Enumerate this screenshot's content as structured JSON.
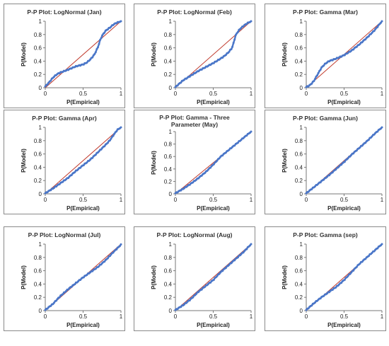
{
  "colors": {
    "empirical_points": "#4a76c8",
    "reference_line": "#c0392b",
    "axis": "#777777",
    "border": "#8a8a8a"
  },
  "chart_data": [
    {
      "type": "line",
      "title": "P-P Plot: LogNormal (Jan)",
      "xlabel": "P(Empirical)",
      "ylabel": "P(Model)",
      "xlim": [
        0,
        1
      ],
      "ylim": [
        0,
        1
      ],
      "x_ticks": [
        "0",
        "0.5",
        "1"
      ],
      "y_ticks": [
        "0",
        "0.2",
        "0.4",
        "0.6",
        "0.8",
        "1"
      ],
      "grid": false,
      "legend": "none",
      "series": [
        {
          "x": [
            0,
            1
          ],
          "y": [
            0,
            1
          ]
        },
        {
          "x": [
            0,
            0.05,
            0.1,
            0.15,
            0.2,
            0.3,
            0.4,
            0.5,
            0.55,
            0.6,
            0.65,
            0.7,
            0.72,
            0.75,
            0.8,
            0.85,
            0.9,
            0.95,
            1.0
          ],
          "y": [
            0.02,
            0.08,
            0.15,
            0.2,
            0.23,
            0.27,
            0.32,
            0.35,
            0.38,
            0.43,
            0.5,
            0.62,
            0.7,
            0.78,
            0.86,
            0.9,
            0.95,
            0.98,
            1.0
          ]
        }
      ]
    },
    {
      "type": "line",
      "title": "P-P Plot: LogNormal (Feb)",
      "xlabel": "P(Empirical)",
      "ylabel": "P(Model)",
      "xlim": [
        0,
        1
      ],
      "ylim": [
        0,
        1
      ],
      "x_ticks": [
        "0",
        "0.5",
        "1"
      ],
      "y_ticks": [
        "0",
        "0.2",
        "0.4",
        "0.6",
        "0.8",
        "1"
      ],
      "grid": false,
      "legend": "none",
      "series": [
        {
          "x": [
            0,
            1
          ],
          "y": [
            0,
            1
          ]
        },
        {
          "x": [
            0,
            0.05,
            0.1,
            0.2,
            0.3,
            0.4,
            0.5,
            0.6,
            0.65,
            0.7,
            0.75,
            0.8,
            0.85,
            0.9,
            0.95,
            1.0
          ],
          "y": [
            0.01,
            0.06,
            0.11,
            0.18,
            0.25,
            0.31,
            0.37,
            0.44,
            0.48,
            0.53,
            0.6,
            0.8,
            0.88,
            0.93,
            0.97,
            1.0
          ]
        }
      ]
    },
    {
      "type": "line",
      "title": "P-P Plot: Gamma (Mar)",
      "xlabel": "P(Empirical)",
      "ylabel": "P(Model)",
      "xlim": [
        0,
        1
      ],
      "ylim": [
        0,
        1
      ],
      "x_ticks": [
        "0",
        "0.5",
        "1"
      ],
      "y_ticks": [
        "0",
        "0.2",
        "0.4",
        "0.6",
        "0.8",
        "1"
      ],
      "grid": false,
      "legend": "none",
      "series": [
        {
          "x": [
            0,
            1
          ],
          "y": [
            0,
            1
          ]
        },
        {
          "x": [
            0,
            0.05,
            0.1,
            0.15,
            0.2,
            0.25,
            0.3,
            0.35,
            0.4,
            0.5,
            0.6,
            0.7,
            0.8,
            0.9,
            0.95,
            1.0
          ],
          "y": [
            0.01,
            0.04,
            0.1,
            0.2,
            0.3,
            0.36,
            0.4,
            0.42,
            0.44,
            0.49,
            0.56,
            0.65,
            0.75,
            0.86,
            0.93,
            1.0
          ]
        }
      ]
    },
    {
      "type": "line",
      "title": "P-P Plot: Gamma (Apr)",
      "xlabel": "P(Empirical)",
      "ylabel": "P(Model)",
      "xlim": [
        0,
        1
      ],
      "ylim": [
        0,
        1
      ],
      "x_ticks": [
        "0",
        "0.5",
        "1"
      ],
      "y_ticks": [
        "0",
        "0.2",
        "0.4",
        "0.6",
        "0.8",
        "1"
      ],
      "grid": false,
      "legend": "none",
      "series": [
        {
          "x": [
            0,
            1
          ],
          "y": [
            0,
            1
          ]
        },
        {
          "x": [
            0,
            0.1,
            0.2,
            0.3,
            0.4,
            0.5,
            0.6,
            0.7,
            0.8,
            0.85,
            0.9,
            0.95,
            1.0
          ],
          "y": [
            0.01,
            0.08,
            0.16,
            0.24,
            0.34,
            0.43,
            0.52,
            0.63,
            0.74,
            0.8,
            0.88,
            0.96,
            1.0
          ]
        }
      ]
    },
    {
      "type": "line",
      "title": "P-P Plot: Gamma - Three Parameter (May)",
      "xlabel": "P(Empirical)",
      "ylabel": "P(Model)",
      "xlim": [
        0,
        1
      ],
      "ylim": [
        0,
        1
      ],
      "x_ticks": [
        "0",
        "0.5",
        "1"
      ],
      "y_ticks": [
        "0",
        "0.2",
        "0.4",
        "0.6",
        "0.8",
        "1"
      ],
      "grid": false,
      "legend": "none",
      "series": [
        {
          "x": [
            0,
            1
          ],
          "y": [
            0,
            1
          ]
        },
        {
          "x": [
            0,
            0.1,
            0.2,
            0.3,
            0.4,
            0.5,
            0.6,
            0.7,
            0.8,
            0.9,
            1.0
          ],
          "y": [
            0.01,
            0.08,
            0.16,
            0.25,
            0.35,
            0.47,
            0.6,
            0.7,
            0.8,
            0.9,
            1.0
          ]
        }
      ]
    },
    {
      "type": "line",
      "title": "P-P Plot: Gamma (Jun)",
      "xlabel": "P(Empirical)",
      "ylabel": "P(Model)",
      "xlim": [
        0,
        1
      ],
      "ylim": [
        0,
        1
      ],
      "x_ticks": [
        "0",
        "0.5",
        "1"
      ],
      "y_ticks": [
        "0",
        "0.2",
        "0.4",
        "0.6",
        "0.8",
        "1"
      ],
      "grid": false,
      "legend": "none",
      "series": [
        {
          "x": [
            0,
            1
          ],
          "y": [
            0,
            1
          ]
        },
        {
          "x": [
            0,
            0.1,
            0.2,
            0.3,
            0.4,
            0.5,
            0.6,
            0.7,
            0.8,
            0.9,
            1.0
          ],
          "y": [
            0.01,
            0.1,
            0.19,
            0.28,
            0.38,
            0.48,
            0.59,
            0.69,
            0.79,
            0.9,
            1.0
          ]
        }
      ]
    },
    {
      "type": "line",
      "title": "P-P Plot: LogNormal (Jul)",
      "xlabel": "P(Empirical)",
      "ylabel": "P(Model)",
      "xlim": [
        0,
        1
      ],
      "ylim": [
        0,
        1
      ],
      "x_ticks": [
        "0",
        "0.5",
        "1"
      ],
      "y_ticks": [
        "0",
        "0.2",
        "0.4",
        "0.6",
        "0.8",
        "1"
      ],
      "grid": false,
      "legend": "none",
      "series": [
        {
          "x": [
            0,
            1
          ],
          "y": [
            0,
            1
          ]
        },
        {
          "x": [
            0,
            0.1,
            0.2,
            0.3,
            0.4,
            0.5,
            0.6,
            0.7,
            0.8,
            0.9,
            1.0
          ],
          "y": [
            0.01,
            0.1,
            0.22,
            0.32,
            0.41,
            0.5,
            0.58,
            0.66,
            0.76,
            0.88,
            0.99
          ]
        }
      ]
    },
    {
      "type": "line",
      "title": "P-P Plot: LogNormal (Aug)",
      "xlabel": "P(Empirical)",
      "ylabel": "P(Model)",
      "xlim": [
        0,
        1
      ],
      "ylim": [
        0,
        1
      ],
      "x_ticks": [
        "0",
        "0.5",
        "1"
      ],
      "y_ticks": [
        "0",
        "0.2",
        "0.4",
        "0.6",
        "0.8",
        "1"
      ],
      "grid": false,
      "legend": "none",
      "series": [
        {
          "x": [
            0,
            1
          ],
          "y": [
            0,
            1
          ]
        },
        {
          "x": [
            0,
            0.1,
            0.2,
            0.3,
            0.4,
            0.5,
            0.6,
            0.7,
            0.8,
            0.9,
            1.0
          ],
          "y": [
            0.01,
            0.08,
            0.17,
            0.28,
            0.37,
            0.46,
            0.58,
            0.68,
            0.78,
            0.88,
            1.0
          ]
        }
      ]
    },
    {
      "type": "line",
      "title": "P-P Plot: Gamma (sep)",
      "xlabel": "P(Empirical)",
      "ylabel": "P(Model)",
      "xlim": [
        0,
        1
      ],
      "ylim": [
        0,
        1
      ],
      "x_ticks": [
        "0",
        "0.5",
        "1"
      ],
      "y_ticks": [
        "0",
        "0.2",
        "0.4",
        "0.6",
        "0.8",
        "1"
      ],
      "grid": false,
      "legend": "none",
      "series": [
        {
          "x": [
            0,
            1
          ],
          "y": [
            0,
            1
          ]
        },
        {
          "x": [
            0,
            0.1,
            0.2,
            0.3,
            0.4,
            0.5,
            0.6,
            0.7,
            0.8,
            0.9,
            1.0
          ],
          "y": [
            0.01,
            0.11,
            0.2,
            0.28,
            0.36,
            0.46,
            0.58,
            0.7,
            0.8,
            0.9,
            1.0
          ]
        }
      ]
    }
  ]
}
